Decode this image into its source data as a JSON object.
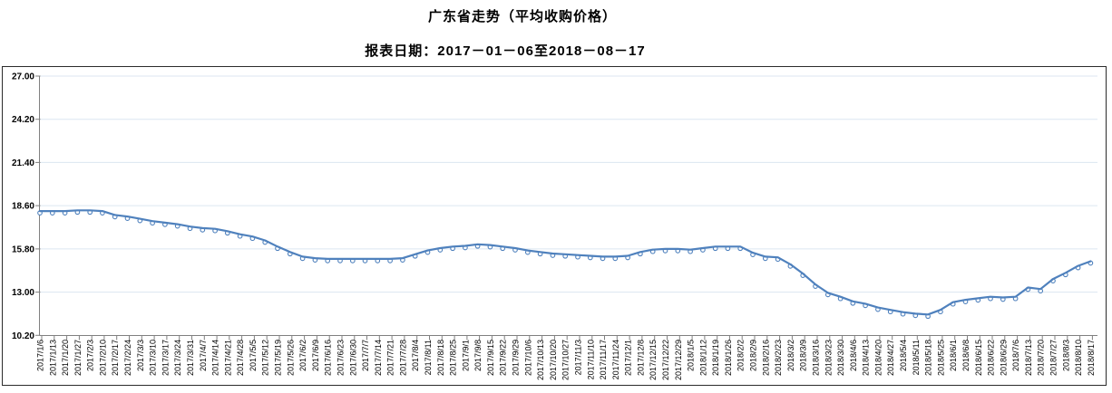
{
  "chart_data": {
    "type": "line",
    "title": "广东省走势（平均收购价格）",
    "subtitle": "报表日期：2017－01－06至2018－08－17",
    "legend": "none",
    "grid": "horizontal",
    "marker": "hollow-circle",
    "colors": {
      "series": "#4f81bd",
      "marker_fill": "#ffffff",
      "gridline": "#dce6f1",
      "axis": "#808080",
      "frame": "#2b2b2b",
      "text": "#000000"
    },
    "ylim": [
      10.2,
      27.0
    ],
    "yticks": [
      10.2,
      13.0,
      15.8,
      18.6,
      21.4,
      24.2,
      27.0
    ],
    "xlabel": "",
    "ylabel": "",
    "x": [
      "2017/1/6",
      "2017/1/13",
      "2017/1/20",
      "2017/1/27",
      "2017/2/3",
      "2017/2/10",
      "2017/2/17",
      "2017/2/24",
      "2017/3/3",
      "2017/3/10",
      "2017/3/17",
      "2017/3/24",
      "2017/3/31",
      "2017/4/7",
      "2017/4/14",
      "2017/4/21",
      "2017/4/28",
      "2017/5/5",
      "2017/5/12",
      "2017/5/19",
      "2017/5/26",
      "2017/6/2",
      "2017/6/9",
      "2017/6/16",
      "2017/6/23",
      "2017/6/30",
      "2017/7/7",
      "2017/7/14",
      "2017/7/21",
      "2017/7/28",
      "2017/8/4",
      "2017/8/11",
      "2017/8/18",
      "2017/8/25",
      "2017/9/1",
      "2017/9/8",
      "2017/9/15",
      "2017/9/22",
      "2017/9/29",
      "2017/10/6",
      "2017/10/13",
      "2017/10/20",
      "2017/10/27",
      "2017/11/3",
      "2017/11/10",
      "2017/11/17",
      "2017/11/24",
      "2017/12/1",
      "2017/12/8",
      "2017/12/15",
      "2017/12/22",
      "2017/12/29",
      "2018/1/5",
      "2018/1/12",
      "2018/1/19",
      "2018/1/26",
      "2018/2/2",
      "2018/2/9",
      "2018/2/16",
      "2018/2/23",
      "2018/3/2",
      "2018/3/9",
      "2018/3/16",
      "2018/3/23",
      "2018/3/30",
      "2018/4/6",
      "2018/4/13",
      "2018/4/20",
      "2018/4/27",
      "2018/5/4",
      "2018/5/11",
      "2018/5/18",
      "2018/5/25",
      "2018/6/1",
      "2018/6/8",
      "2018/6/15",
      "2018/6/22",
      "2018/6/29",
      "2018/7/6",
      "2018/7/13",
      "2018/7/20",
      "2018/7/27",
      "2018/8/3",
      "2018/8/10",
      "2018/8/17"
    ],
    "values": [
      18.25,
      18.25,
      18.25,
      18.3,
      18.3,
      18.25,
      18.0,
      17.9,
      17.75,
      17.6,
      17.5,
      17.4,
      17.25,
      17.15,
      17.1,
      16.95,
      16.75,
      16.6,
      16.35,
      15.95,
      15.6,
      15.3,
      15.2,
      15.15,
      15.15,
      15.15,
      15.15,
      15.15,
      15.15,
      15.2,
      15.45,
      15.7,
      15.85,
      15.95,
      16.0,
      16.1,
      16.05,
      15.95,
      15.85,
      15.7,
      15.6,
      15.5,
      15.45,
      15.4,
      15.35,
      15.3,
      15.3,
      15.35,
      15.6,
      15.75,
      15.8,
      15.8,
      15.75,
      15.85,
      15.95,
      15.95,
      15.95,
      15.55,
      15.3,
      15.25,
      14.8,
      14.2,
      13.5,
      12.95,
      12.7,
      12.4,
      12.25,
      12.0,
      11.85,
      11.7,
      11.6,
      11.55,
      11.85,
      12.35,
      12.5,
      12.6,
      12.7,
      12.65,
      12.7,
      13.3,
      13.2,
      13.85,
      14.25,
      14.7,
      15.0
    ]
  }
}
